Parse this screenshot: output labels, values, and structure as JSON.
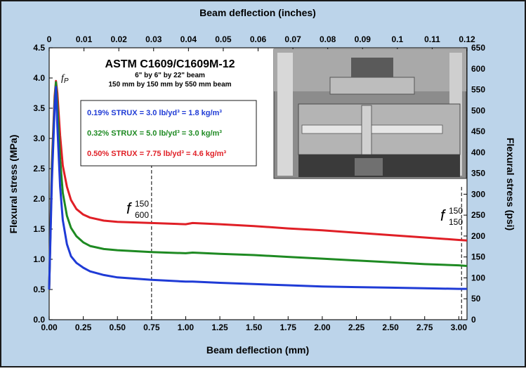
{
  "chart_data": {
    "type": "line",
    "title": "ASTM C1609/C1609M-12",
    "subtitle_lines": [
      "6\" by 6\" by 22\" beam",
      "150 mm by 150 mm by 550 mm beam"
    ],
    "xlabel": "Beam deflection (mm)",
    "x2label": "Beam deflection (inches)",
    "ylabel": "Flexural stress (MPa)",
    "y2label": "Flexural stress (psi)",
    "xlim": [
      0,
      3.06
    ],
    "ylim": [
      0,
      4.5
    ],
    "x2lim": [
      0,
      0.12
    ],
    "y2lim": [
      0,
      650
    ],
    "x_ticks": [
      "0.00",
      "0.25",
      "0.50",
      "0.75",
      "1.00",
      "1.25",
      "1.50",
      "1.75",
      "2.00",
      "2.25",
      "2.50",
      "2.75",
      "3.00"
    ],
    "y_ticks": [
      "0.0",
      "0.5",
      "1.0",
      "1.5",
      "2.0",
      "2.5",
      "3.0",
      "3.5",
      "4.0",
      "4.5"
    ],
    "x2_ticks": [
      "0",
      "0.01",
      "0.02",
      "0.03",
      "0.04",
      "0.05",
      "0.06",
      "0.07",
      "0.08",
      "0.09",
      "0.1",
      "0.11",
      "0.12"
    ],
    "y2_ticks": [
      "0",
      "50",
      "100",
      "150",
      "200",
      "250",
      "300",
      "350",
      "400",
      "450",
      "500",
      "550",
      "600",
      "650"
    ],
    "annotations": {
      "peak": {
        "letter": "f",
        "sub": "P"
      },
      "f600": {
        "letter": "f",
        "sup": "150",
        "sub": "600",
        "x": 0.75
      },
      "f150": {
        "letter": "f",
        "sup": "150",
        "sub": "150",
        "x": 3.02
      }
    },
    "legend": [
      {
        "text": "0.19% STRUX =  3.0 lb/yd³ = 1.8 kg/m³",
        "color": "#1f3bd6"
      },
      {
        "text": "0.32% STRUX =  5.0 lb/yd³ = 3.0 kg/m³",
        "color": "#1e8a22"
      },
      {
        "text": "0.50% STRUX =  7.75 lb/yd³ = 4.6 kg/m³",
        "color": "#e01f26"
      }
    ],
    "series": [
      {
        "name": "0.50% STRUX",
        "color": "#e01f26",
        "x": [
          0.0,
          0.02,
          0.04,
          0.05,
          0.06,
          0.08,
          0.1,
          0.13,
          0.16,
          0.2,
          0.25,
          0.3,
          0.4,
          0.5,
          0.75,
          1.0,
          1.05,
          1.25,
          1.5,
          1.75,
          2.0,
          2.25,
          2.5,
          2.75,
          3.0,
          3.06
        ],
        "y": [
          0.5,
          2.6,
          3.7,
          3.95,
          3.75,
          3.05,
          2.55,
          2.2,
          1.98,
          1.83,
          1.74,
          1.69,
          1.64,
          1.62,
          1.6,
          1.58,
          1.6,
          1.58,
          1.55,
          1.51,
          1.48,
          1.44,
          1.4,
          1.36,
          1.32,
          1.31
        ]
      },
      {
        "name": "0.32% STRUX",
        "color": "#1e8a22",
        "x": [
          0.0,
          0.02,
          0.04,
          0.05,
          0.06,
          0.08,
          0.1,
          0.13,
          0.16,
          0.2,
          0.25,
          0.3,
          0.4,
          0.5,
          0.75,
          1.0,
          1.05,
          1.25,
          1.5,
          1.75,
          2.0,
          2.25,
          2.5,
          2.75,
          3.0,
          3.06
        ],
        "y": [
          0.5,
          2.5,
          3.6,
          3.93,
          3.55,
          2.65,
          2.1,
          1.72,
          1.52,
          1.38,
          1.28,
          1.22,
          1.17,
          1.15,
          1.12,
          1.1,
          1.11,
          1.09,
          1.07,
          1.04,
          1.01,
          0.98,
          0.95,
          0.92,
          0.9,
          0.89
        ]
      },
      {
        "name": "0.19% STRUX",
        "color": "#1f3bd6",
        "x": [
          0.0,
          0.02,
          0.04,
          0.05,
          0.06,
          0.08,
          0.1,
          0.13,
          0.16,
          0.2,
          0.25,
          0.3,
          0.4,
          0.5,
          0.75,
          1.0,
          1.05,
          1.25,
          1.5,
          1.75,
          2.0,
          2.25,
          2.5,
          2.75,
          3.0,
          3.06
        ],
        "y": [
          0.5,
          2.3,
          3.5,
          3.85,
          3.2,
          2.2,
          1.65,
          1.25,
          1.05,
          0.94,
          0.86,
          0.8,
          0.74,
          0.7,
          0.66,
          0.63,
          0.63,
          0.61,
          0.59,
          0.57,
          0.55,
          0.54,
          0.53,
          0.52,
          0.51,
          0.51
        ]
      }
    ]
  }
}
